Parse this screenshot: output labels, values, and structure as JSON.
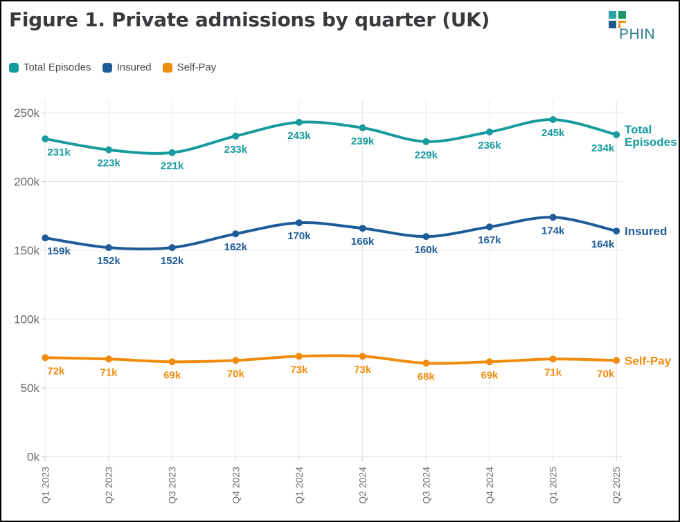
{
  "header": {
    "title": "Figure 1. Private admissions by quarter (UK)",
    "logo_text": "PHIN"
  },
  "legend": [
    {
      "label": "Total Episodes",
      "color": "#189B9E"
    },
    {
      "label": "Insured",
      "color": "#1E5C99"
    },
    {
      "label": "Self-Pay",
      "color": "#F18B0C"
    }
  ],
  "chart_data": {
    "type": "line",
    "title": "Figure 1. Private admissions by quarter (UK)",
    "x": [
      "Q1 2023",
      "Q2 2023",
      "Q3 2023",
      "Q4 2023",
      "Q1 2024",
      "Q2 2024",
      "Q3 2024",
      "Q4 2024",
      "Q1 2025",
      "Q2 2025"
    ],
    "series": [
      {
        "name": "Total Episodes",
        "color": "#189B9E",
        "end_label_lines": [
          "Total",
          "Episodes"
        ],
        "values_k": [
          231,
          223,
          221,
          233,
          243,
          239,
          229,
          236,
          245,
          234
        ]
      },
      {
        "name": "Insured",
        "color": "#1E5C99",
        "end_label_lines": [
          "Insured"
        ],
        "values_k": [
          159,
          152,
          152,
          162,
          170,
          166,
          160,
          167,
          174,
          164
        ]
      },
      {
        "name": "Self-Pay",
        "color": "#F18B0C",
        "end_label_lines": [
          "Self-Pay"
        ],
        "values_k": [
          72,
          71,
          69,
          70,
          73,
          73,
          68,
          69,
          71,
          70
        ]
      }
    ],
    "unit": "k",
    "ylim": [
      0,
      250
    ],
    "ytick_values": [
      0,
      50,
      100,
      150,
      200,
      250
    ],
    "grid": true,
    "legend_position": "top-left",
    "data_labels": true,
    "colors": {
      "grid": "#E7E7E7",
      "tick": "#CFCFCF",
      "axis_text": "#666666",
      "x_axis_text": "#6E6E6E"
    }
  }
}
